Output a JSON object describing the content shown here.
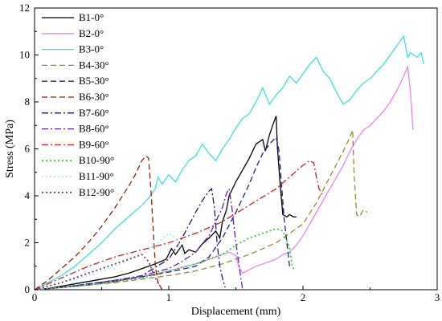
{
  "chart_data": {
    "type": "line",
    "xlabel": "Displacement (mm)",
    "ylabel": "Stress (MPa)",
    "xlim": [
      0,
      3
    ],
    "ylim": [
      0,
      12
    ],
    "x_ticks": [
      0,
      1,
      2,
      3
    ],
    "y_ticks": [
      0,
      2,
      4,
      6,
      8,
      10,
      12
    ],
    "grid": false,
    "legend_position": "upper-left",
    "series": [
      {
        "name": "B1-0°",
        "color": "#000000",
        "dash": "solid",
        "x": [
          0,
          0.1,
          0.2,
          0.3,
          0.4,
          0.5,
          0.6,
          0.7,
          0.8,
          0.9,
          0.98,
          1.02,
          1.05,
          1.1,
          1.12,
          1.15,
          1.2,
          1.25,
          1.3,
          1.35,
          1.38,
          1.4,
          1.43,
          1.45,
          1.5,
          1.55,
          1.6,
          1.65,
          1.7,
          1.72,
          1.75,
          1.78,
          1.8,
          1.81,
          1.83,
          1.85,
          1.88,
          1.9,
          1.93,
          1.95
        ],
        "y": [
          0,
          0.05,
          0.15,
          0.25,
          0.35,
          0.45,
          0.55,
          0.7,
          0.9,
          1.1,
          1.3,
          1.75,
          1.5,
          1.9,
          1.55,
          1.7,
          1.6,
          1.95,
          2.2,
          2.5,
          2.2,
          2.9,
          3.4,
          4.0,
          4.6,
          5.1,
          5.6,
          6.2,
          6.4,
          5.9,
          6.6,
          7.1,
          7.4,
          6.0,
          4.5,
          3.2,
          3.1,
          3.2,
          3.1,
          3.1
        ]
      },
      {
        "name": "B2-0°",
        "color": "#ee82ee",
        "dash": "solid",
        "x": [
          0,
          0.2,
          0.4,
          0.6,
          0.8,
          1.0,
          1.2,
          1.35,
          1.45,
          1.5,
          1.52,
          1.55,
          1.6,
          1.65,
          1.7,
          1.75,
          1.8,
          1.85,
          1.9,
          1.95,
          2.0,
          2.1,
          2.2,
          2.3,
          2.35,
          2.4,
          2.45,
          2.5,
          2.55,
          2.6,
          2.65,
          2.7,
          2.75,
          2.78,
          2.8,
          2.82
        ],
        "y": [
          0,
          0.1,
          0.2,
          0.35,
          0.55,
          0.8,
          1.1,
          1.4,
          1.6,
          1.45,
          1.0,
          0.7,
          0.85,
          1.0,
          1.1,
          1.2,
          1.3,
          1.5,
          1.6,
          1.9,
          2.3,
          3.3,
          4.3,
          5.3,
          5.9,
          6.4,
          6.8,
          7.0,
          7.3,
          7.6,
          8.0,
          8.5,
          9.1,
          9.5,
          8.5,
          6.8
        ]
      },
      {
        "name": "B3-0°",
        "color": "#3de0e0",
        "dash": "solid",
        "x": [
          0,
          0.1,
          0.2,
          0.3,
          0.4,
          0.5,
          0.6,
          0.7,
          0.8,
          0.85,
          0.9,
          0.92,
          0.95,
          1.0,
          1.05,
          1.1,
          1.15,
          1.2,
          1.25,
          1.3,
          1.35,
          1.4,
          1.45,
          1.5,
          1.55,
          1.6,
          1.65,
          1.7,
          1.75,
          1.8,
          1.85,
          1.9,
          1.95,
          2.0,
          2.05,
          2.1,
          2.15,
          2.2,
          2.25,
          2.3,
          2.35,
          2.4,
          2.45,
          2.5,
          2.55,
          2.6,
          2.65,
          2.7,
          2.75,
          2.78,
          2.8,
          2.85,
          2.88,
          2.9
        ],
        "y": [
          0,
          0.3,
          0.6,
          1.0,
          1.5,
          2.0,
          2.6,
          3.1,
          3.6,
          3.9,
          4.3,
          4.8,
          4.5,
          4.9,
          4.6,
          5.1,
          5.5,
          5.7,
          6.2,
          5.8,
          5.5,
          6.0,
          6.4,
          6.9,
          7.3,
          7.5,
          8.0,
          8.6,
          7.9,
          8.3,
          8.6,
          9.1,
          8.8,
          9.2,
          9.6,
          9.9,
          9.3,
          9.0,
          8.4,
          7.9,
          8.1,
          8.5,
          8.8,
          9.0,
          9.3,
          9.6,
          10.0,
          10.4,
          10.8,
          9.9,
          10.1,
          9.9,
          10.1,
          9.6
        ]
      },
      {
        "name": "B4-30°",
        "color": "#9a8a2a",
        "dash": "7,4",
        "x": [
          0,
          0.2,
          0.4,
          0.6,
          0.8,
          1.0,
          1.2,
          1.4,
          1.6,
          1.8,
          2.0,
          2.1,
          2.2,
          2.3,
          2.35,
          2.37,
          2.38,
          2.4,
          2.42,
          2.45,
          2.48
        ],
        "y": [
          0,
          0.1,
          0.2,
          0.3,
          0.45,
          0.6,
          0.8,
          1.1,
          1.5,
          2.0,
          2.8,
          3.7,
          4.8,
          5.9,
          6.5,
          6.8,
          5.0,
          3.2,
          3.1,
          3.4,
          3.3
        ]
      },
      {
        "name": "B5-30°",
        "color": "#1a237e",
        "dash": "7,4",
        "x": [
          0,
          0.2,
          0.4,
          0.6,
          0.8,
          1.0,
          1.2,
          1.3,
          1.4,
          1.5,
          1.6,
          1.65,
          1.7,
          1.75,
          1.8,
          1.82,
          1.84,
          1.86,
          1.88,
          1.9
        ],
        "y": [
          0,
          0.1,
          0.25,
          0.4,
          0.55,
          0.75,
          1.0,
          1.4,
          2.2,
          3.3,
          4.5,
          5.2,
          5.8,
          6.2,
          6.5,
          6.0,
          4.5,
          3.0,
          2.0,
          1.0
        ]
      },
      {
        "name": "B6-30°",
        "color": "#8b2500",
        "dash": "7,4",
        "x": [
          0,
          0.1,
          0.2,
          0.3,
          0.4,
          0.5,
          0.6,
          0.7,
          0.75,
          0.8,
          0.83,
          0.85,
          0.87,
          0.89,
          0.9,
          0.92,
          0.95
        ],
        "y": [
          0,
          0.4,
          0.9,
          1.4,
          2.0,
          2.7,
          3.5,
          4.4,
          4.9,
          5.5,
          5.7,
          5.6,
          4.0,
          2.0,
          1.0,
          0.3,
          0
        ]
      },
      {
        "name": "B7-60°",
        "color": "#1a1a7a",
        "dash": "8,3,2,3",
        "x": [
          0,
          0.2,
          0.4,
          0.6,
          0.8,
          1.0,
          1.1,
          1.2,
          1.25,
          1.3,
          1.32,
          1.34,
          1.36,
          1.38,
          1.4,
          1.42
        ],
        "y": [
          0,
          0.1,
          0.2,
          0.35,
          0.6,
          1.3,
          2.2,
          3.3,
          3.8,
          4.2,
          4.3,
          3.5,
          2.0,
          1.0,
          0.5,
          0.1
        ]
      },
      {
        "name": "B8-60°",
        "color": "#6a1fb0",
        "dash": "8,3,2,3",
        "x": [
          0,
          0.2,
          0.4,
          0.6,
          0.8,
          1.0,
          1.1,
          1.2,
          1.3,
          1.4,
          1.43,
          1.45,
          1.47,
          1.5,
          1.53,
          1.55
        ],
        "y": [
          0,
          0.1,
          0.25,
          0.4,
          0.6,
          0.9,
          1.2,
          1.6,
          2.3,
          3.5,
          4.1,
          4.3,
          3.5,
          2.0,
          0.8,
          0
        ]
      },
      {
        "name": "B9-60°",
        "color": "#cc2222",
        "dash": "8,3,2,3",
        "x": [
          0,
          0.2,
          0.4,
          0.6,
          0.8,
          1.0,
          1.2,
          1.4,
          1.6,
          1.8,
          1.9,
          2.0,
          2.05,
          2.08,
          2.1,
          2.12,
          2.15
        ],
        "y": [
          0,
          0.5,
          1.0,
          1.4,
          1.7,
          2.0,
          2.4,
          2.9,
          3.6,
          4.3,
          4.8,
          5.3,
          5.5,
          5.4,
          4.8,
          4.3,
          4.0
        ]
      },
      {
        "name": "B10-90°",
        "color": "#33cc33",
        "dash": "2,3",
        "x": [
          0,
          0.2,
          0.4,
          0.6,
          0.8,
          1.0,
          1.2,
          1.4,
          1.5,
          1.6,
          1.7,
          1.8,
          1.85,
          1.9,
          1.92,
          1.94
        ],
        "y": [
          0,
          0.1,
          0.2,
          0.35,
          0.5,
          0.8,
          1.1,
          1.5,
          1.9,
          2.2,
          2.4,
          2.6,
          2.5,
          1.8,
          1.0,
          0.8
        ]
      },
      {
        "name": "B11-90°",
        "color": "#a8e8f0",
        "dash": "2,3",
        "x": [
          0,
          0.2,
          0.4,
          0.6,
          0.8,
          0.9,
          1.0,
          1.05,
          1.1,
          1.15,
          1.2
        ],
        "y": [
          0,
          0.3,
          0.6,
          1.0,
          1.5,
          1.9,
          2.4,
          2.2,
          1.6,
          1.0,
          0.5
        ]
      },
      {
        "name": "B12-90°",
        "color": "#7a3a6a",
        "dash": "2,3",
        "x": [
          0,
          0.2,
          0.4,
          0.6,
          0.7,
          0.8,
          0.85,
          0.9,
          0.95
        ],
        "y": [
          0,
          0.3,
          0.7,
          1.1,
          1.3,
          1.5,
          1.2,
          0.5,
          0
        ]
      }
    ]
  }
}
